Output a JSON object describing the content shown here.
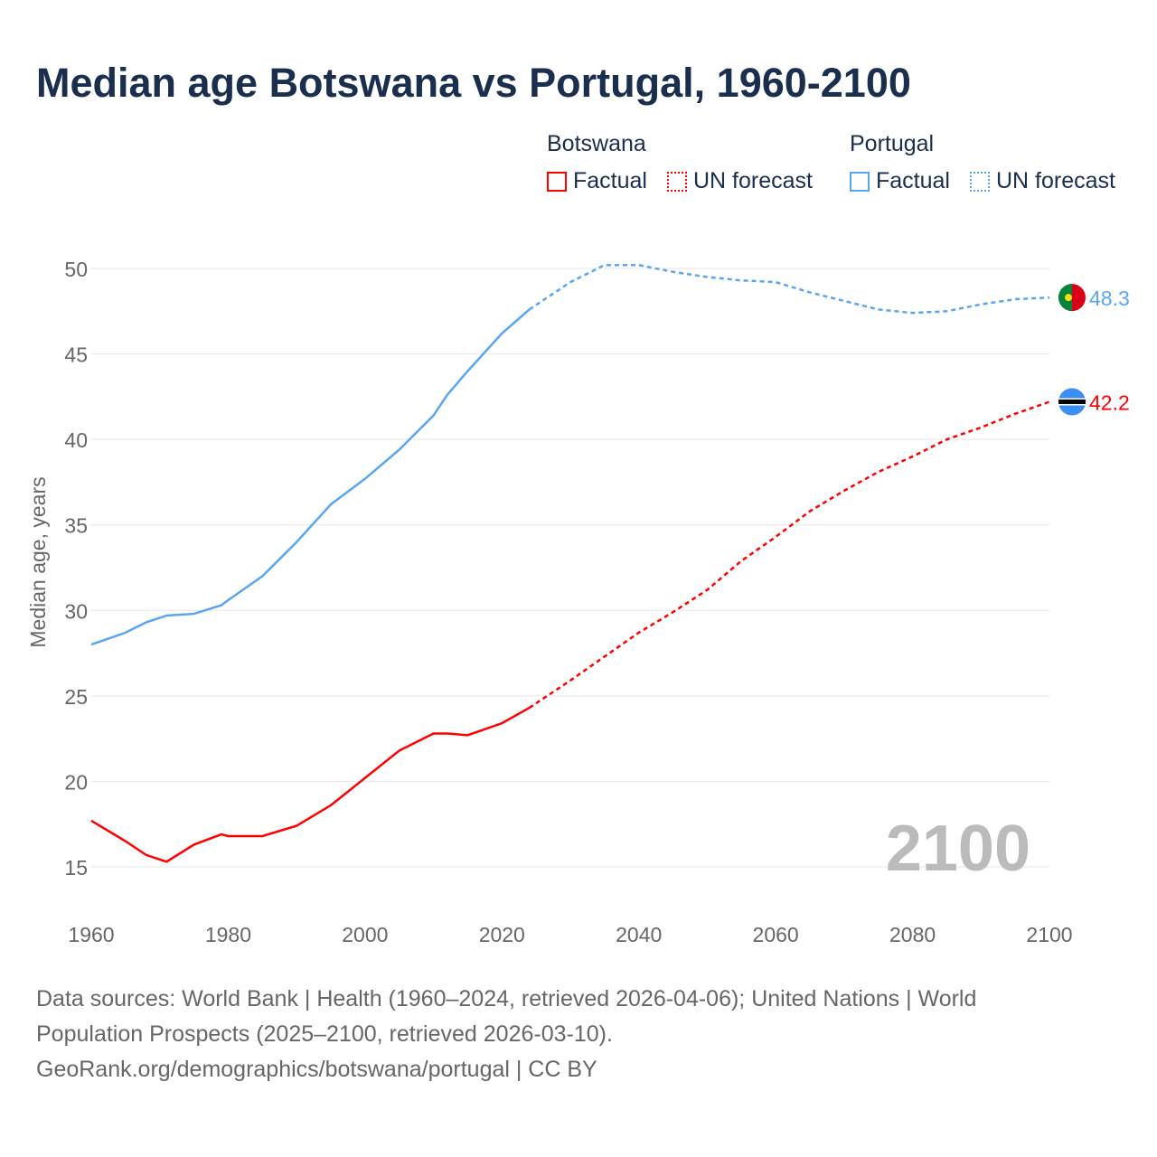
{
  "title": "Median age Botswana vs Portugal, 1960-2100",
  "legend": {
    "botswana": "Botswana",
    "portugal": "Portugal",
    "factual": "Factual",
    "forecast": "UN forecast"
  },
  "footer": {
    "line1": "Data sources: World Bank | Health (1960–2024, retrieved 2026-04-06); United Nations | World",
    "line2": "Population Prospects (2025–2100, retrieved 2026-03-10).",
    "line3": "GeoRank.org/demographics/botswana/portugal | CC BY"
  },
  "chart_data": {
    "type": "line",
    "title": "Median age Botswana vs Portugal, 1960-2100",
    "xlabel": "",
    "ylabel": "Median age, years",
    "xlim": [
      1960,
      2100
    ],
    "ylim": [
      15,
      50
    ],
    "xticks": [
      "1960",
      "1980",
      "2000",
      "2020",
      "2040",
      "2060",
      "2080",
      "2100"
    ],
    "yticks": [
      "15",
      "20",
      "25",
      "30",
      "35",
      "40",
      "45",
      "50"
    ],
    "year_watermark": "2100",
    "forecast_start": 2024,
    "x": [
      1960,
      1965,
      1968,
      1971,
      1975,
      1979,
      1980,
      1985,
      1990,
      1995,
      2000,
      2005,
      2010,
      2012,
      2015,
      2020,
      2024,
      2030,
      2035,
      2040,
      2045,
      2050,
      2055,
      2060,
      2065,
      2070,
      2075,
      2080,
      2085,
      2090,
      2095,
      2100
    ],
    "series": [
      {
        "name": "Botswana",
        "color": "#ff0000",
        "end_label": "42.2",
        "values": [
          17.7,
          16.5,
          15.7,
          15.3,
          16.3,
          16.9,
          16.8,
          16.8,
          17.4,
          18.6,
          20.2,
          21.8,
          22.8,
          22.8,
          22.7,
          23.4,
          24.3,
          25.9,
          27.3,
          28.7,
          29.9,
          31.2,
          32.9,
          34.3,
          35.8,
          37.0,
          38.1,
          39.0,
          40.0,
          40.7,
          41.5,
          42.2
        ]
      },
      {
        "name": "Portugal",
        "color": "#5aa5ef",
        "end_label": "48.3",
        "values": [
          28.0,
          28.7,
          29.3,
          29.7,
          29.8,
          30.3,
          30.6,
          32.0,
          34.0,
          36.2,
          37.7,
          39.4,
          41.4,
          42.6,
          44.0,
          46.2,
          47.6,
          49.2,
          50.2,
          50.2,
          49.8,
          49.5,
          49.3,
          49.2,
          48.6,
          48.1,
          47.6,
          47.4,
          47.5,
          47.9,
          48.2,
          48.3
        ]
      }
    ]
  }
}
